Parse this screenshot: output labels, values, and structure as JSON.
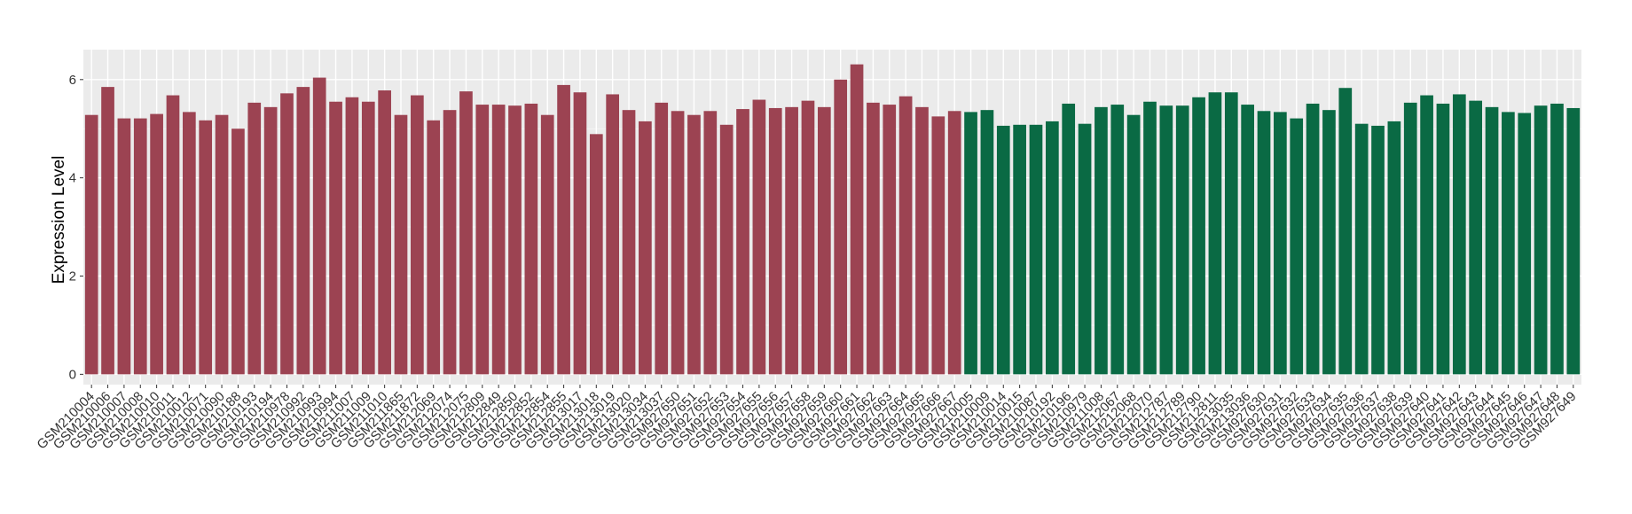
{
  "chart_data": {
    "type": "bar",
    "y_label": "Expression Level",
    "categories": [
      "GSM210004",
      "GSM210006",
      "GSM210007",
      "GSM210008",
      "GSM210010",
      "GSM210011",
      "GSM210012",
      "GSM210071",
      "GSM210090",
      "GSM210188",
      "GSM210193",
      "GSM210194",
      "GSM210978",
      "GSM210992",
      "GSM210993",
      "GSM210994",
      "GSM211007",
      "GSM211009",
      "GSM211010",
      "GSM211865",
      "GSM211872",
      "GSM212069",
      "GSM212074",
      "GSM212075",
      "GSM212809",
      "GSM212849",
      "GSM212850",
      "GSM212852",
      "GSM212854",
      "GSM212855",
      "GSM213017",
      "GSM213018",
      "GSM213019",
      "GSM213020",
      "GSM213034",
      "GSM213037",
      "GSM927650",
      "GSM927651",
      "GSM927652",
      "GSM927653",
      "GSM927654",
      "GSM927655",
      "GSM927656",
      "GSM927657",
      "GSM927658",
      "GSM927659",
      "GSM927660",
      "GSM927661",
      "GSM927662",
      "GSM927663",
      "GSM927664",
      "GSM927665",
      "GSM927666",
      "GSM927667",
      "GSM210005",
      "GSM210009",
      "GSM210014",
      "GSM210015",
      "GSM210087",
      "GSM210192",
      "GSM210196",
      "GSM210979",
      "GSM211008",
      "GSM212067",
      "GSM212068",
      "GSM212070",
      "GSM212787",
      "GSM212789",
      "GSM212790",
      "GSM212811",
      "GSM213035",
      "GSM213036",
      "GSM927630",
      "GSM927631",
      "GSM927632",
      "GSM927633",
      "GSM927634",
      "GSM927635",
      "GSM927636",
      "GSM927637",
      "GSM927638",
      "GSM927639",
      "GSM927640",
      "GSM927641",
      "GSM927642",
      "GSM927643",
      "GSM927644",
      "GSM927645",
      "GSM927646",
      "GSM927647",
      "GSM927648",
      "GSM927649"
    ],
    "values": [
      5.28,
      5.85,
      5.21,
      5.21,
      5.3,
      5.68,
      5.34,
      5.17,
      5.28,
      5.0,
      5.53,
      5.44,
      5.72,
      5.85,
      6.04,
      5.55,
      5.64,
      5.55,
      5.78,
      5.28,
      5.68,
      5.17,
      5.38,
      5.76,
      5.49,
      5.49,
      5.47,
      5.51,
      5.28,
      5.89,
      5.74,
      4.89,
      5.7,
      5.38,
      5.15,
      5.53,
      5.36,
      5.28,
      5.36,
      5.08,
      5.4,
      5.59,
      5.42,
      5.44,
      5.57,
      5.44,
      6.0,
      6.31,
      5.53,
      5.49,
      5.66,
      5.44,
      5.25,
      5.36,
      5.34,
      5.38,
      5.06,
      5.08,
      5.08,
      5.15,
      5.51,
      5.1,
      5.44,
      5.49,
      5.28,
      5.55,
      5.47,
      5.47,
      5.64,
      5.74,
      5.74,
      5.49,
      5.36,
      5.34,
      5.21,
      5.51,
      5.38,
      5.83,
      5.1,
      5.06,
      5.15,
      5.53,
      5.68,
      5.51,
      5.7,
      5.57,
      5.44,
      5.34,
      5.32,
      5.47,
      5.51,
      5.42
    ],
    "colors": [
      "#9c4352",
      "#9c4352",
      "#9c4352",
      "#9c4352",
      "#9c4352",
      "#9c4352",
      "#9c4352",
      "#9c4352",
      "#9c4352",
      "#9c4352",
      "#9c4352",
      "#9c4352",
      "#9c4352",
      "#9c4352",
      "#9c4352",
      "#9c4352",
      "#9c4352",
      "#9c4352",
      "#9c4352",
      "#9c4352",
      "#9c4352",
      "#9c4352",
      "#9c4352",
      "#9c4352",
      "#9c4352",
      "#9c4352",
      "#9c4352",
      "#9c4352",
      "#9c4352",
      "#9c4352",
      "#9c4352",
      "#9c4352",
      "#9c4352",
      "#9c4352",
      "#9c4352",
      "#9c4352",
      "#9c4352",
      "#9c4352",
      "#9c4352",
      "#9c4352",
      "#9c4352",
      "#9c4352",
      "#9c4352",
      "#9c4352",
      "#9c4352",
      "#9c4352",
      "#9c4352",
      "#9c4352",
      "#9c4352",
      "#9c4352",
      "#9c4352",
      "#9c4352",
      "#9c4352",
      "#9c4352",
      "#0a6a44",
      "#0a6a44",
      "#0a6a44",
      "#0a6a44",
      "#0a6a44",
      "#0a6a44",
      "#0a6a44",
      "#0a6a44",
      "#0a6a44",
      "#0a6a44",
      "#0a6a44",
      "#0a6a44",
      "#0a6a44",
      "#0a6a44",
      "#0a6a44",
      "#0a6a44",
      "#0a6a44",
      "#0a6a44",
      "#0a6a44",
      "#0a6a44",
      "#0a6a44",
      "#0a6a44",
      "#0a6a44",
      "#0a6a44",
      "#0a6a44",
      "#0a6a44",
      "#0a6a44",
      "#0a6a44",
      "#0a6a44",
      "#0a6a44",
      "#0a6a44",
      "#0a6a44",
      "#0a6a44",
      "#0a6a44",
      "#0a6a44",
      "#0a6a44",
      "#0a6a44",
      "#0a6a44"
    ],
    "ylim": [
      -0.21,
      6.61
    ],
    "yticks": [
      0,
      2,
      4,
      6
    ],
    "grid": true
  }
}
